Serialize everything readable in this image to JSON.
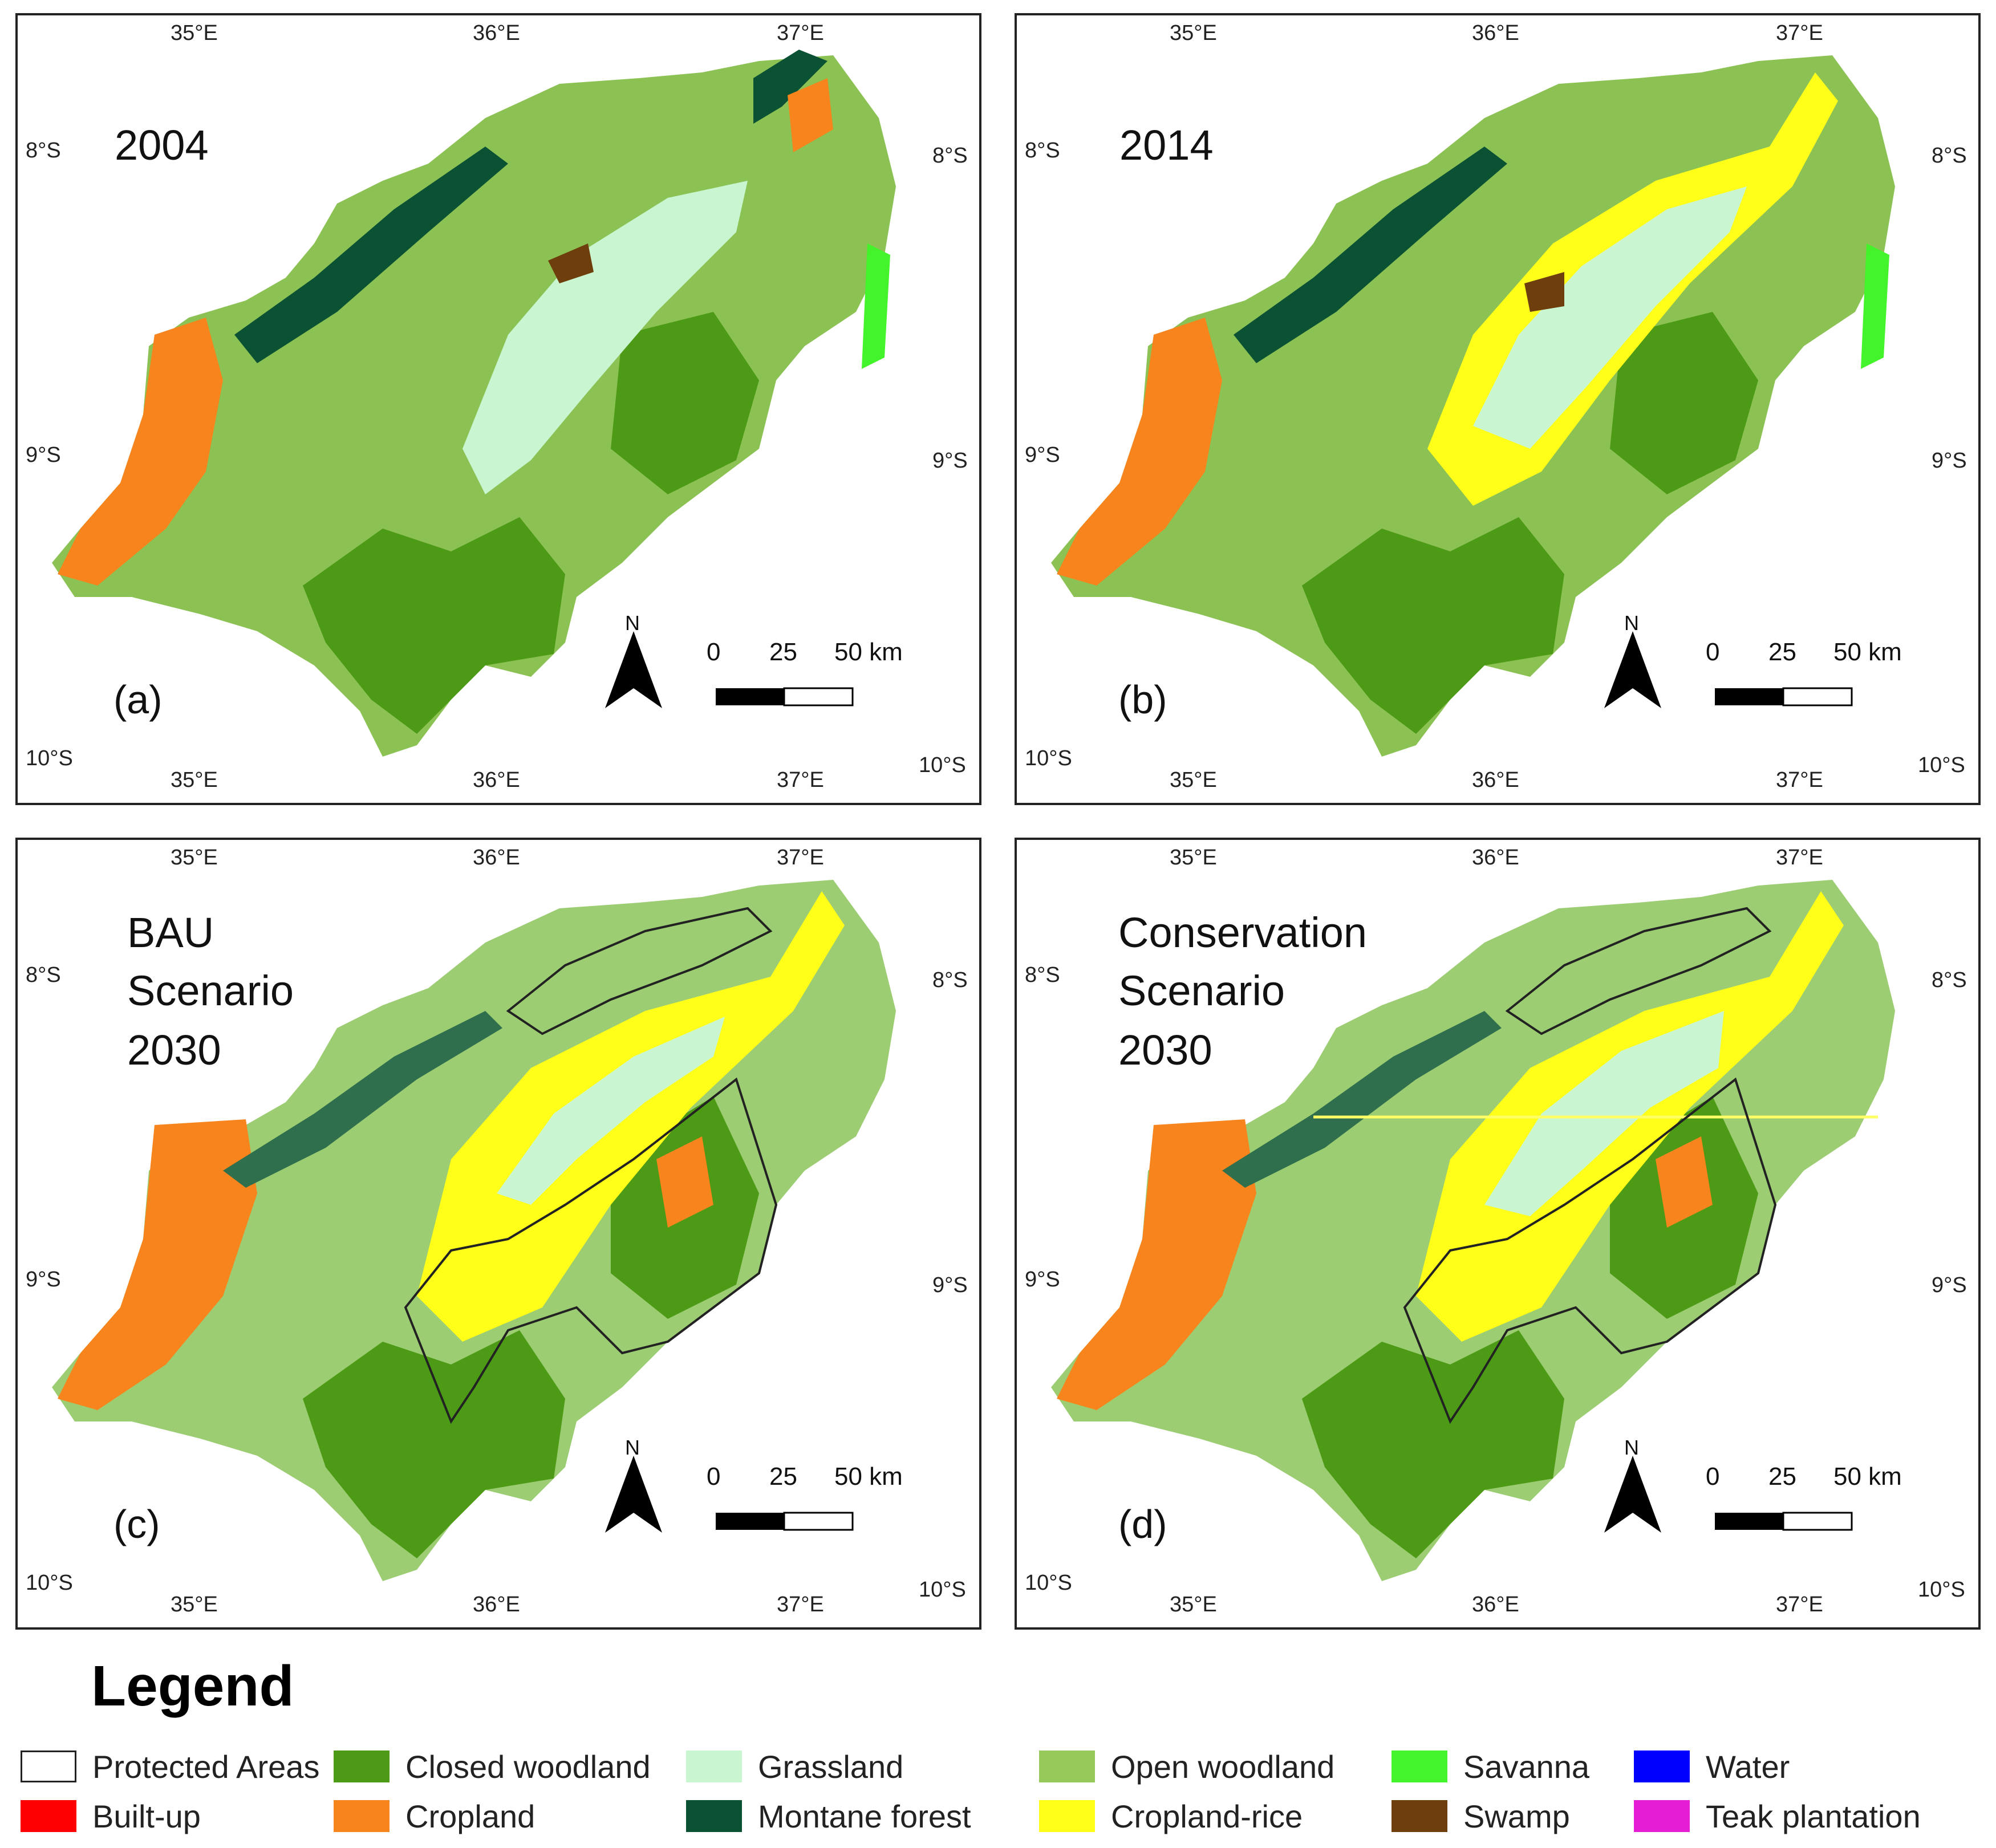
{
  "panels": [
    {
      "id": "a",
      "title": [
        "2004"
      ],
      "label": "(a)"
    },
    {
      "id": "b",
      "title": [
        "2014"
      ],
      "label": "(b)"
    },
    {
      "id": "c",
      "title": [
        "BAU",
        "Scenario",
        "2030"
      ],
      "label": "(c)"
    },
    {
      "id": "d",
      "title": [
        "Conservation",
        "Scenario",
        "2030"
      ],
      "label": "(d)"
    }
  ],
  "axes": {
    "lon_ticks": [
      "35°E",
      "36°E",
      "37°E"
    ],
    "lat_ticks": [
      "8°S",
      "9°S",
      "10°S"
    ]
  },
  "scale_bar": {
    "labels": [
      "0",
      "25",
      "50 km"
    ]
  },
  "north_arrow": {
    "label": "N"
  },
  "legend": {
    "title": "Legend",
    "items": [
      {
        "label": "Protected Areas",
        "color": "#ffffff"
      },
      {
        "label": "Built-up",
        "color": "#ff0000"
      },
      {
        "label": "Closed woodland",
        "color": "#4c9a16"
      },
      {
        "label": "Cropland",
        "color": "#f7841c"
      },
      {
        "label": "Grassland",
        "color": "#c9f5d0"
      },
      {
        "label": "Montane forest",
        "color": "#0b5133"
      },
      {
        "label": "Open woodland",
        "color": "#96c95a"
      },
      {
        "label": "Cropland-rice",
        "color": "#ffff1a"
      },
      {
        "label": "Savanna",
        "color": "#43f32b"
      },
      {
        "label": "Swamp",
        "color": "#6e3f0d"
      },
      {
        "label": "Water",
        "color": "#0000ff"
      },
      {
        "label": "Teak plantation",
        "color": "#e51ed6"
      }
    ]
  }
}
